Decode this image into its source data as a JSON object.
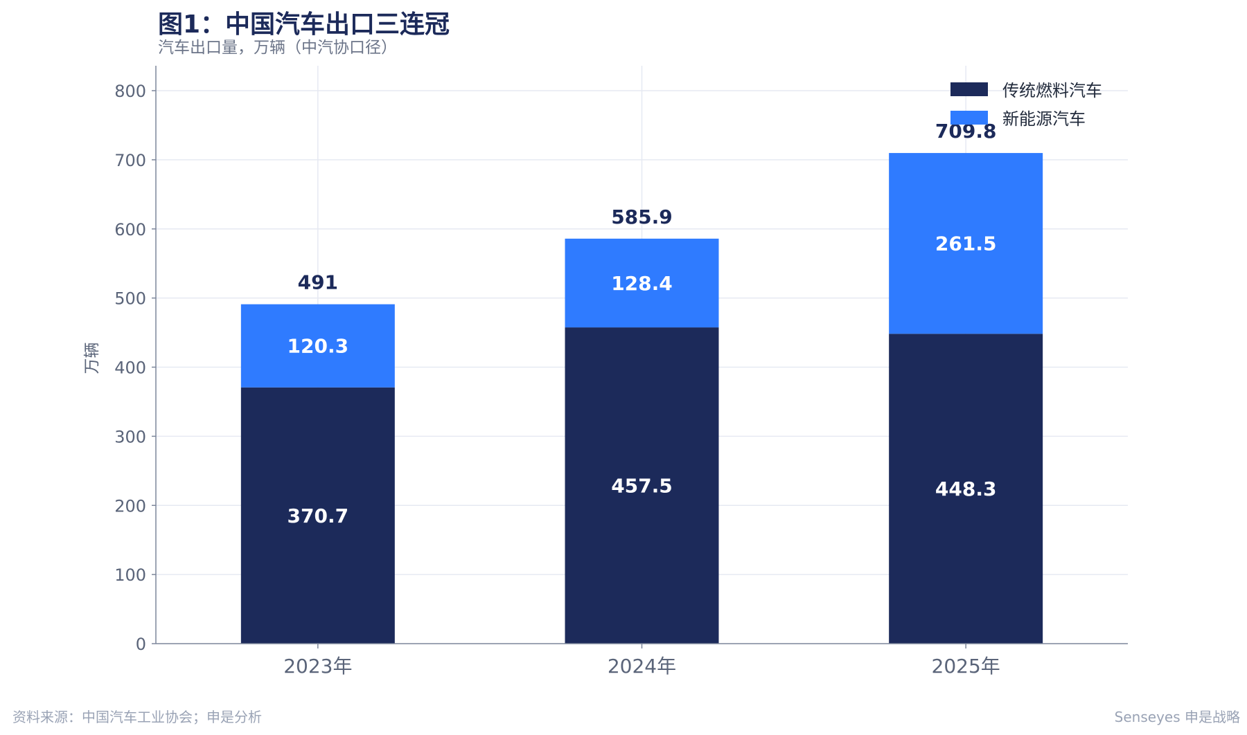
{
  "title": "图1：中国汽车出口三连冠",
  "subtitle": "汽车出口量，万辆（中汽协口径）",
  "footer_left": "资料来源：中国汽车工业协会；申是分析",
  "footer_right": "Senseyes 申是战略",
  "chart_data": {
    "type": "bar",
    "stacked": true,
    "title": "图1：中国汽车出口三连冠",
    "subtitle": "汽车出口量，万辆（中汽协口径）",
    "xlabel": "",
    "ylabel": "万辆",
    "categories": [
      "2023年",
      "2024年",
      "2025年"
    ],
    "series": [
      {
        "name": "传统燃料汽车",
        "color": "#1c2a5a",
        "values": [
          370.7,
          457.5,
          448.3
        ]
      },
      {
        "name": "新能源汽车",
        "color": "#2f7bff",
        "values": [
          120.3,
          128.4,
          261.5
        ]
      }
    ],
    "totals": [
      491,
      585.9,
      709.8
    ],
    "total_labels": [
      "491",
      "585.9",
      "709.8"
    ],
    "value_labels": [
      [
        "370.7",
        "457.5",
        "448.3"
      ],
      [
        "120.3",
        "128.4",
        "261.5"
      ]
    ],
    "ylim": [
      0,
      840
    ],
    "yticks": [
      0,
      100,
      200,
      300,
      400,
      500,
      600,
      700,
      800
    ],
    "grid": true,
    "legend_position": "top-right"
  }
}
